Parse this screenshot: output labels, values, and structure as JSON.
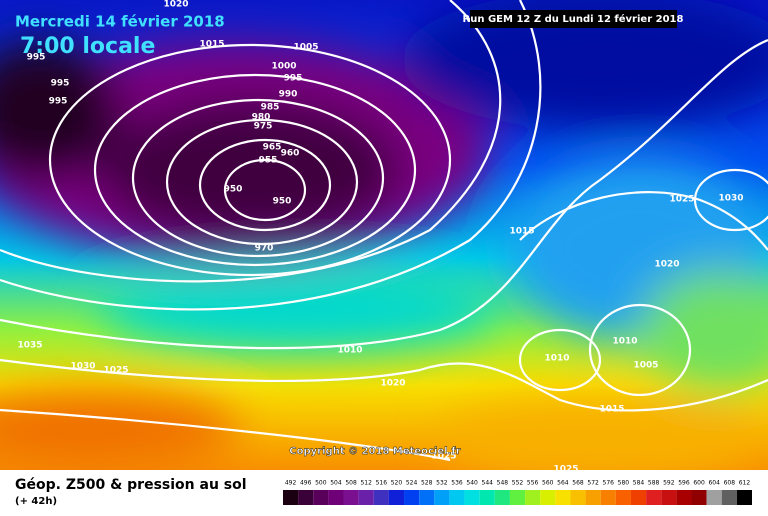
{
  "header": {
    "date": "Mercredi 14 février 2018",
    "time": "7:00 locale",
    "run": "Run GEM 12 Z du Lundi 12 février 2018"
  },
  "isobar_labels": [
    1020,
    1015,
    1005,
    995,
    995,
    995,
    1000,
    995,
    990,
    985,
    980,
    975,
    965,
    960,
    955,
    950,
    950,
    970,
    1015,
    1025,
    1030,
    1020,
    1035,
    1030,
    1025,
    1010,
    1010,
    1010,
    1005,
    1020,
    1015,
    1025,
    1025
  ],
  "copyright": "Copyright © 2018 Meteociel.fr",
  "footer": {
    "title": "Géop. Z500 & pression au sol",
    "lead": "(+ 42h)"
  },
  "legend": {
    "values": [
      492,
      496,
      500,
      504,
      508,
      512,
      516,
      520,
      524,
      528,
      532,
      536,
      540,
      544,
      548,
      552,
      556,
      560,
      564,
      568,
      572,
      576,
      580,
      584,
      588,
      592,
      596,
      600,
      604,
      608,
      612
    ],
    "colors": [
      "#1a0010",
      "#3a0038",
      "#58005a",
      "#700078",
      "#7a1090",
      "#6a20a8",
      "#4030c0",
      "#1020d8",
      "#0040f0",
      "#0070f8",
      "#00a0f8",
      "#00c8f0",
      "#00e0e0",
      "#00e8b0",
      "#20e880",
      "#60f040",
      "#a0f020",
      "#d8f000",
      "#f8e000",
      "#f8c000",
      "#f8a000",
      "#f88000",
      "#f86000",
      "#f04000",
      "#e02020",
      "#c81010",
      "#a80000",
      "#900000",
      "#a0a0a0",
      "#606060",
      "#000000"
    ]
  }
}
